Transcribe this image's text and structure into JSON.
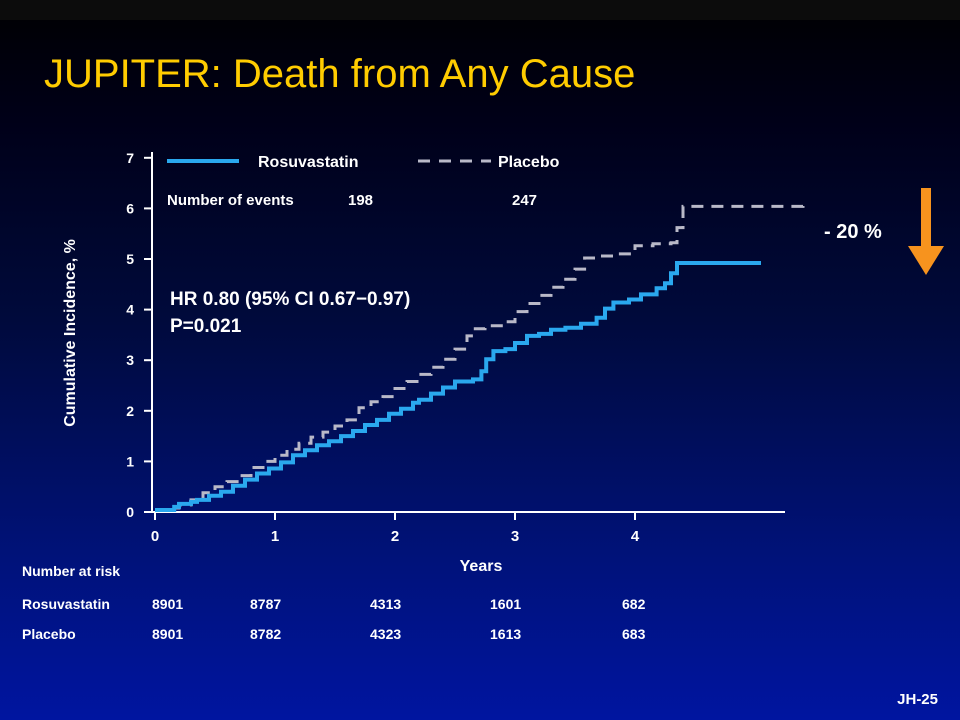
{
  "slide": {
    "title": "JUPITER: Death from Any Cause",
    "footer": "JH-25"
  },
  "colors": {
    "background_top": "#000000",
    "background_bottom": "#0015a0",
    "title": "#ffcc00",
    "text": "#ffffff",
    "rosuvastatin": "#2aa8ee",
    "placebo": "#b9b9c8",
    "arrow": "#f7931e"
  },
  "chart_data": {
    "type": "line",
    "xlabel": "Years",
    "ylabel": "Cumulative Incidence, %",
    "xlim": [
      0,
      5.2
    ],
    "ylim": [
      0,
      7
    ],
    "x_ticks": [
      "0",
      "1",
      "2",
      "3",
      "4"
    ],
    "y_ticks": [
      "0",
      "1",
      "2",
      "3",
      "4",
      "5",
      "6",
      "7"
    ],
    "grid": false,
    "legend_position": "top",
    "events_label": "Number of events",
    "hr_text": "HR 0.80 (95% CI 0.67−0.97)",
    "p_text": "P=0.021",
    "reduction_label": "- 20 %",
    "series": [
      {
        "name": "Rosuvastatin",
        "events": "198",
        "style": "solid",
        "points": [
          [
            0,
            0.04
          ],
          [
            0.12,
            0.04
          ],
          [
            0.16,
            0.1
          ],
          [
            0.2,
            0.16
          ],
          [
            0.3,
            0.2
          ],
          [
            0.35,
            0.24
          ],
          [
            0.45,
            0.32
          ],
          [
            0.55,
            0.4
          ],
          [
            0.65,
            0.52
          ],
          [
            0.75,
            0.64
          ],
          [
            0.85,
            0.76
          ],
          [
            0.95,
            0.86
          ],
          [
            1.05,
            0.98
          ],
          [
            1.15,
            1.12
          ],
          [
            1.25,
            1.22
          ],
          [
            1.35,
            1.32
          ],
          [
            1.45,
            1.4
          ],
          [
            1.55,
            1.5
          ],
          [
            1.65,
            1.6
          ],
          [
            1.75,
            1.72
          ],
          [
            1.85,
            1.82
          ],
          [
            1.95,
            1.94
          ],
          [
            2.05,
            2.04
          ],
          [
            2.15,
            2.16
          ],
          [
            2.2,
            2.22
          ],
          [
            2.3,
            2.34
          ],
          [
            2.4,
            2.46
          ],
          [
            2.5,
            2.58
          ],
          [
            2.58,
            2.58
          ],
          [
            2.65,
            2.62
          ],
          [
            2.72,
            2.78
          ],
          [
            2.76,
            3.02
          ],
          [
            2.82,
            3.18
          ],
          [
            2.92,
            3.22
          ],
          [
            3.0,
            3.34
          ],
          [
            3.1,
            3.48
          ],
          [
            3.2,
            3.52
          ],
          [
            3.3,
            3.6
          ],
          [
            3.42,
            3.64
          ],
          [
            3.55,
            3.72
          ],
          [
            3.68,
            3.84
          ],
          [
            3.75,
            4.02
          ],
          [
            3.82,
            4.14
          ],
          [
            3.95,
            4.2
          ],
          [
            4.05,
            4.3
          ],
          [
            4.18,
            4.42
          ],
          [
            4.25,
            4.52
          ],
          [
            4.3,
            4.72
          ],
          [
            4.35,
            4.92
          ],
          [
            5.05,
            4.92
          ]
        ]
      },
      {
        "name": "Placebo",
        "events": "247",
        "style": "dashed",
        "points": [
          [
            0,
            0.04
          ],
          [
            0.12,
            0.08
          ],
          [
            0.2,
            0.14
          ],
          [
            0.3,
            0.24
          ],
          [
            0.4,
            0.38
          ],
          [
            0.5,
            0.5
          ],
          [
            0.6,
            0.6
          ],
          [
            0.7,
            0.72
          ],
          [
            0.8,
            0.88
          ],
          [
            0.9,
            1.0
          ],
          [
            1.0,
            1.12
          ],
          [
            1.1,
            1.24
          ],
          [
            1.2,
            1.36
          ],
          [
            1.3,
            1.48
          ],
          [
            1.4,
            1.58
          ],
          [
            1.5,
            1.7
          ],
          [
            1.6,
            1.82
          ],
          [
            1.7,
            2.06
          ],
          [
            1.8,
            2.18
          ],
          [
            1.9,
            2.28
          ],
          [
            2.0,
            2.44
          ],
          [
            2.1,
            2.58
          ],
          [
            2.2,
            2.72
          ],
          [
            2.3,
            2.86
          ],
          [
            2.4,
            3.02
          ],
          [
            2.5,
            3.22
          ],
          [
            2.6,
            3.48
          ],
          [
            2.65,
            3.62
          ],
          [
            2.75,
            3.68
          ],
          [
            2.9,
            3.76
          ],
          [
            3.0,
            3.96
          ],
          [
            3.1,
            4.12
          ],
          [
            3.2,
            4.28
          ],
          [
            3.3,
            4.44
          ],
          [
            3.4,
            4.6
          ],
          [
            3.5,
            4.8
          ],
          [
            3.58,
            5.02
          ],
          [
            3.7,
            5.06
          ],
          [
            3.85,
            5.1
          ],
          [
            4.0,
            5.26
          ],
          [
            4.15,
            5.3
          ],
          [
            4.3,
            5.32
          ],
          [
            4.35,
            5.62
          ],
          [
            4.4,
            6.04
          ],
          [
            5.4,
            6.1
          ]
        ]
      }
    ],
    "risk_table": {
      "header": "Number at risk",
      "rows": [
        {
          "label": "Rosuvastatin",
          "values": [
            "8901",
            "8787",
            "4313",
            "1601",
            "682"
          ]
        },
        {
          "label": "Placebo",
          "values": [
            "8901",
            "8782",
            "4323",
            "1613",
            "683"
          ]
        }
      ]
    }
  }
}
